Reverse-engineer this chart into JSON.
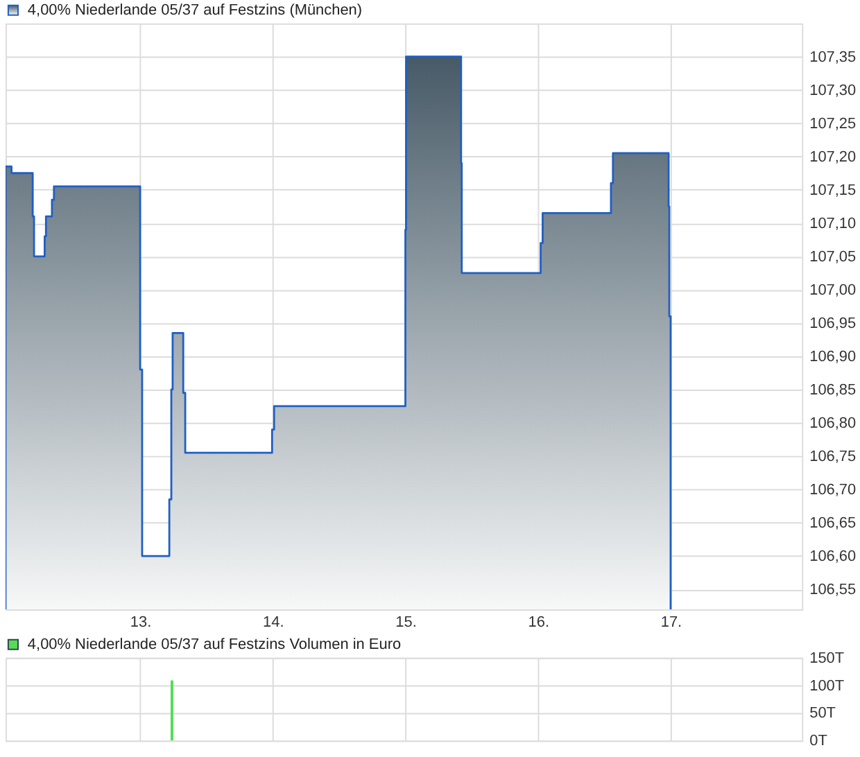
{
  "chart_data": [
    {
      "type": "area",
      "legend": "top left",
      "grid": true,
      "xlim": [
        11.985,
        17.99
      ],
      "xticks": [
        {
          "value": 13,
          "label": "13."
        },
        {
          "value": 14,
          "label": "14."
        },
        {
          "value": 15,
          "label": "15."
        },
        {
          "value": 16,
          "label": "16."
        },
        {
          "value": 17,
          "label": "17."
        }
      ],
      "ylim": [
        106.52,
        107.4
      ],
      "yticks": [
        {
          "value": 106.55,
          "label": "106,55"
        },
        {
          "value": 106.6,
          "label": "106,60"
        },
        {
          "value": 106.65,
          "label": "106,65"
        },
        {
          "value": 106.7,
          "label": "106,70"
        },
        {
          "value": 106.75,
          "label": "106,75"
        },
        {
          "value": 106.8,
          "label": "106,80"
        },
        {
          "value": 106.85,
          "label": "106,85"
        },
        {
          "value": 106.9,
          "label": "106,90"
        },
        {
          "value": 106.95,
          "label": "106,95"
        },
        {
          "value": 107.0,
          "label": "107,00"
        },
        {
          "value": 107.05,
          "label": "107,05"
        },
        {
          "value": 107.1,
          "label": "107,10"
        },
        {
          "value": 107.15,
          "label": "107,15"
        },
        {
          "value": 107.2,
          "label": "107,20"
        },
        {
          "value": 107.25,
          "label": "107,25"
        },
        {
          "value": 107.3,
          "label": "107,30"
        },
        {
          "value": 107.35,
          "label": "107,35"
        }
      ],
      "x": [
        11.985,
        12.03,
        12.19,
        12.2,
        12.28,
        12.29,
        12.335,
        12.35,
        13.0,
        13.015,
        13.22,
        13.235,
        13.245,
        13.325,
        13.34,
        13.995,
        14.01,
        15.0,
        15.005,
        15.42,
        15.425,
        16.02,
        16.035,
        16.55,
        16.565,
        16.985,
        16.99,
        17.0
      ],
      "series": [
        {
          "name": "4,00% Niederlande 05/37 auf Festzins (München)",
          "color": "#1f5fc4",
          "values": [
            107.185,
            107.175,
            107.11,
            107.05,
            107.08,
            107.11,
            107.135,
            107.155,
            106.88,
            106.6,
            106.685,
            106.85,
            106.935,
            106.845,
            106.755,
            106.79,
            106.825,
            107.09,
            107.35,
            107.19,
            107.025,
            107.07,
            107.115,
            107.16,
            107.205,
            107.125,
            106.96,
            106.88
          ]
        }
      ]
    },
    {
      "type": "bar",
      "legend": "top left",
      "grid": true,
      "tick_labels": "y",
      "xlim": [
        11.985,
        17.99
      ],
      "xticks": [
        {
          "value": 13,
          "label": null
        },
        {
          "value": 14,
          "label": null
        },
        {
          "value": 15,
          "label": null
        },
        {
          "value": 16,
          "label": null
        },
        {
          "value": 17,
          "label": null
        }
      ],
      "ylim": [
        0,
        150
      ],
      "yticks": [
        {
          "value": 0,
          "label": "0T"
        },
        {
          "value": 50,
          "label": "50T"
        },
        {
          "value": 100,
          "label": "100T"
        },
        {
          "value": 150,
          "label": "150T"
        }
      ],
      "x": [
        13.24
      ],
      "series": [
        {
          "name": "4,00% Niederlande 05/37 auf Festzins Volumen in Euro",
          "color": "#55dd55",
          "values": [
            109
          ]
        }
      ]
    }
  ]
}
